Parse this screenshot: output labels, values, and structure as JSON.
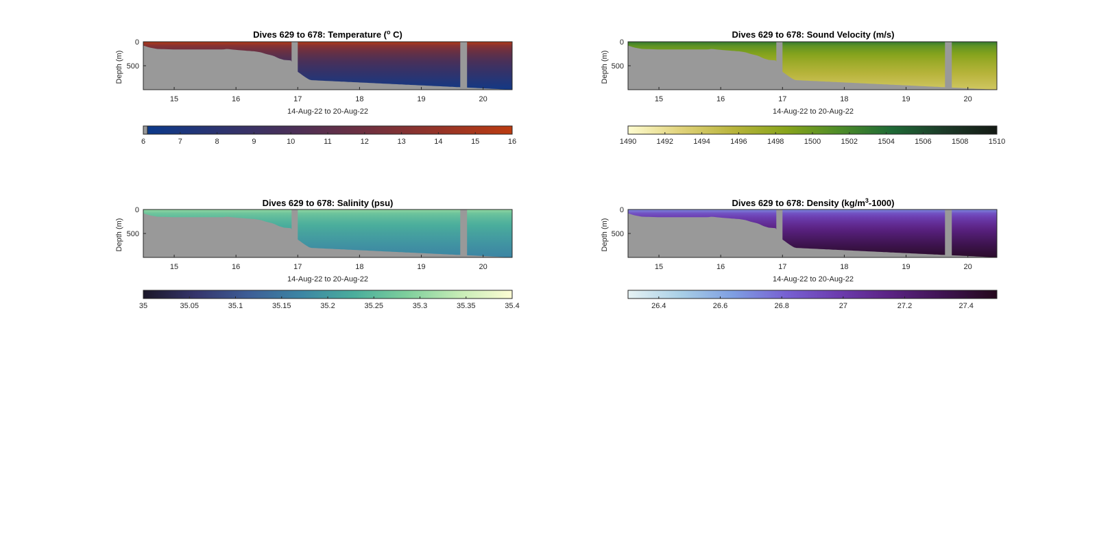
{
  "figure": {
    "panels": [
      {
        "id": "temperature",
        "title_prefix": "Dives 629 to 678: Temperature (",
        "title_sup": "o",
        "title_suffix": " C)",
        "ylabel": "Depth (m)",
        "xlabel": "14-Aug-22 to 20-Aug-22",
        "colormap": [
          "#0a3a8c",
          "#2c3470",
          "#4a3058",
          "#6e3040",
          "#953428",
          "#bb3b10"
        ],
        "colorbar_ticks": [
          "6",
          "7",
          "8",
          "9",
          "10",
          "11",
          "12",
          "13",
          "14",
          "15",
          "16"
        ]
      },
      {
        "id": "sound-velocity",
        "title_prefix": "Dives 629 to 678: Sound Velocity (m/s)",
        "title_sup": "",
        "title_suffix": "",
        "ylabel": "Depth (m)",
        "xlabel": "14-Aug-22 to 20-Aug-22",
        "colormap": [
          "#fefcd0",
          "#e0d27a",
          "#b8b43c",
          "#88a41c",
          "#4e8c28",
          "#1f6a36",
          "#1c3a28",
          "#141a14"
        ],
        "colorbar_ticks": [
          "1490",
          "1492",
          "1494",
          "1496",
          "1498",
          "1500",
          "1502",
          "1504",
          "1506",
          "1508",
          "1510"
        ]
      },
      {
        "id": "salinity",
        "title_prefix": "Dives 629 to 678: Salinity (psu)",
        "title_sup": "",
        "title_suffix": "",
        "ylabel": "Depth (m)",
        "xlabel": "14-Aug-22 to 20-Aug-22",
        "colormap": [
          "#1a1628",
          "#35356c",
          "#3d5e96",
          "#3c86a4",
          "#4aad9c",
          "#7ecf9c",
          "#c6ecb6",
          "#fdfcd4"
        ],
        "colorbar_ticks": [
          "35",
          "35.05",
          "35.1",
          "35.15",
          "35.2",
          "35.25",
          "35.3",
          "35.35",
          "35.4"
        ]
      },
      {
        "id": "density",
        "title_prefix": "Dives 629 to 678: Density (kg/m",
        "title_sup": "3",
        "title_suffix": "-1000)",
        "ylabel": "Depth (m)",
        "xlabel": "14-Aug-22 to 20-Aug-22",
        "colormap": [
          "#e6f2f4",
          "#a9cfe6",
          "#7e9ee2",
          "#7760d2",
          "#6c3cae",
          "#5a2282",
          "#3e1450",
          "#24081c"
        ],
        "colorbar_ticks": [
          "26.4",
          "26.6",
          "26.8",
          "27",
          "27.2",
          "27.4"
        ]
      }
    ]
  },
  "chart_data": [
    {
      "type": "heatmap",
      "title": "Dives 629 to 678: Temperature (o C)",
      "xlabel": "14-Aug-22 to 20-Aug-22",
      "ylabel": "Depth (m)",
      "x_ticks": [
        15,
        16,
        17,
        18,
        19,
        20
      ],
      "xlim": [
        14.5,
        20.47
      ],
      "y_ticks": [
        0,
        500
      ],
      "ylim": [
        1000,
        0
      ],
      "y_reversed": true,
      "colorbar": {
        "label_values": [
          6,
          7,
          8,
          9,
          10,
          11,
          12,
          13,
          14,
          15,
          16
        ],
        "clim": [
          6,
          16
        ]
      },
      "surface_value": 15.5,
      "deep_value": 6.5
    },
    {
      "type": "heatmap",
      "title": "Dives 629 to 678: Sound Velocity (m/s)",
      "xlabel": "14-Aug-22 to 20-Aug-22",
      "ylabel": "Depth (m)",
      "x_ticks": [
        15,
        16,
        17,
        18,
        19,
        20
      ],
      "xlim": [
        14.5,
        20.47
      ],
      "y_ticks": [
        0,
        500
      ],
      "ylim": [
        1000,
        0
      ],
      "y_reversed": true,
      "colorbar": {
        "label_values": [
          1490,
          1492,
          1494,
          1496,
          1498,
          1500,
          1502,
          1504,
          1506,
          1508,
          1510
        ],
        "clim": [
          1490,
          1510
        ]
      },
      "surface_value": 1503,
      "deep_value": 1494
    },
    {
      "type": "heatmap",
      "title": "Dives 629 to 678: Salinity (psu)",
      "xlabel": "14-Aug-22 to 20-Aug-22",
      "ylabel": "Depth (m)",
      "x_ticks": [
        15,
        16,
        17,
        18,
        19,
        20
      ],
      "xlim": [
        14.5,
        20.47
      ],
      "y_ticks": [
        0,
        500
      ],
      "ylim": [
        1000,
        0
      ],
      "y_reversed": true,
      "colorbar": {
        "label_values": [
          35,
          35.05,
          35.1,
          35.15,
          35.2,
          35.25,
          35.3,
          35.35,
          35.4
        ],
        "clim": [
          35,
          35.4
        ]
      },
      "surface_value": 35.3,
      "deep_value": 35.17
    },
    {
      "type": "heatmap",
      "title": "Dives 629 to 678: Density (kg/m3-1000)",
      "xlabel": "14-Aug-22 to 20-Aug-22",
      "ylabel": "Depth (m)",
      "x_ticks": [
        15,
        16,
        17,
        18,
        19,
        20
      ],
      "xlim": [
        14.5,
        20.47
      ],
      "y_ticks": [
        0,
        500
      ],
      "ylim": [
        1000,
        0
      ],
      "y_reversed": true,
      "colorbar": {
        "label_values": [
          26.4,
          26.6,
          26.8,
          27,
          27.2,
          27.4
        ],
        "clim": [
          26.3,
          27.5
        ]
      },
      "surface_value": 26.7,
      "deep_value": 27.45
    }
  ],
  "bathymetry": {
    "x": [
      14.5,
      14.6,
      14.72,
      15.0,
      15.2,
      15.5,
      15.8,
      15.85,
      16.0,
      16.1,
      16.3,
      16.4,
      16.5,
      16.6,
      16.7,
      16.78,
      16.9,
      16.97,
      17.1,
      17.2,
      20.47
    ],
    "depth": [
      80,
      120,
      150,
      160,
      160,
      160,
      160,
      150,
      170,
      180,
      200,
      220,
      260,
      290,
      350,
      380,
      390,
      600,
      720,
      800,
      1000
    ]
  },
  "data_gaps": [
    {
      "from": 16.9,
      "to": 17.0
    },
    {
      "from": 19.63,
      "to": 19.74
    }
  ]
}
